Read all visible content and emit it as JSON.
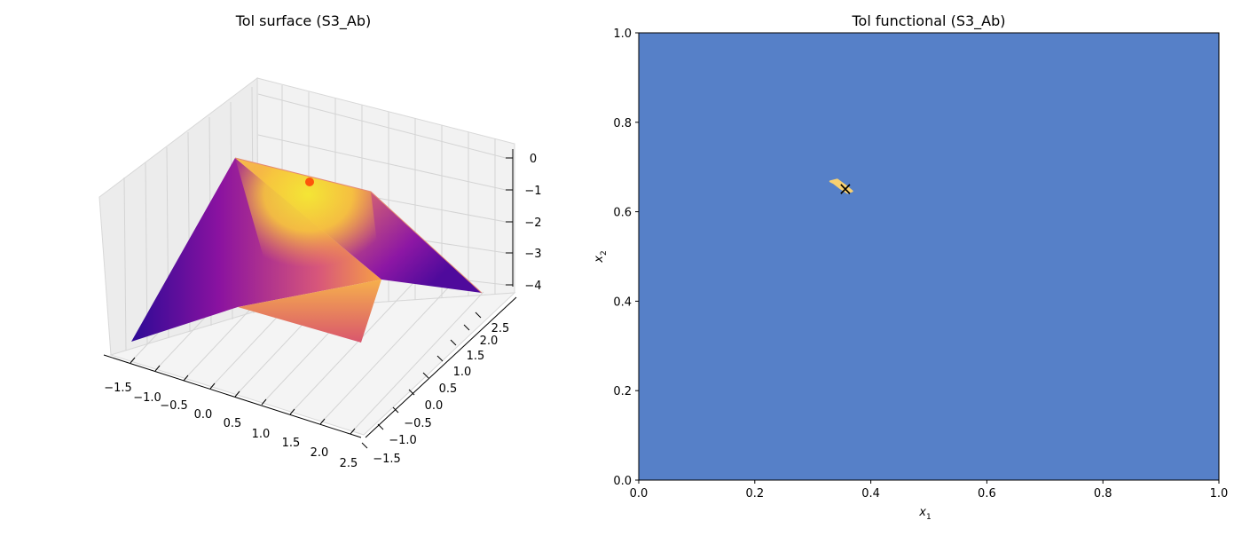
{
  "chart_data": [
    {
      "type": "surface3d",
      "title": "Tol surface (S3_Ab)",
      "x_ticks": [
        "−1.5",
        "−1.0",
        "−0.5",
        "0.0",
        "0.5",
        "1.0",
        "1.5",
        "2.0",
        "2.5"
      ],
      "y_ticks": [
        "−1.5",
        "−1.0",
        "−0.5",
        "0.0",
        "0.5",
        "1.0",
        "1.5",
        "2.0",
        "2.5"
      ],
      "z_ticks": [
        "0",
        "−1",
        "−2",
        "−3",
        "−4"
      ],
      "xlim": [
        -1.7,
        2.6
      ],
      "ylim": [
        -1.7,
        2.6
      ],
      "zlim": [
        -4.3,
        0.2
      ],
      "colormap": [
        "#0d0887",
        "#7e03a8",
        "#cc4778",
        "#f89540",
        "#f0f921"
      ],
      "max_point": {
        "x": 0.36,
        "y": 0.65,
        "z": -0.02,
        "color": "#ff3300"
      }
    },
    {
      "type": "heatmap",
      "title": "Tol functional (S3_Ab)",
      "xlabel": "x",
      "xlabel_sub": "1",
      "ylabel": "x",
      "ylabel_sub": "2",
      "x_ticks": [
        "0.0",
        "0.2",
        "0.4",
        "0.6",
        "0.8",
        "1.0"
      ],
      "y_ticks": [
        "0.0",
        "0.2",
        "0.4",
        "0.6",
        "0.8",
        "1.0"
      ],
      "xlim": [
        0,
        1
      ],
      "ylim": [
        0,
        1
      ],
      "background_color": "#5680c8",
      "region_color": "#f8d070",
      "feasible_region": [
        [
          0.33,
          0.668
        ],
        [
          0.342,
          0.672
        ],
        [
          0.356,
          0.659
        ],
        [
          0.368,
          0.646
        ],
        [
          0.36,
          0.642
        ],
        [
          0.348,
          0.652
        ],
        [
          0.336,
          0.664
        ]
      ],
      "marker": {
        "x": 0.356,
        "y": 0.652,
        "symbol": "×"
      }
    }
  ]
}
